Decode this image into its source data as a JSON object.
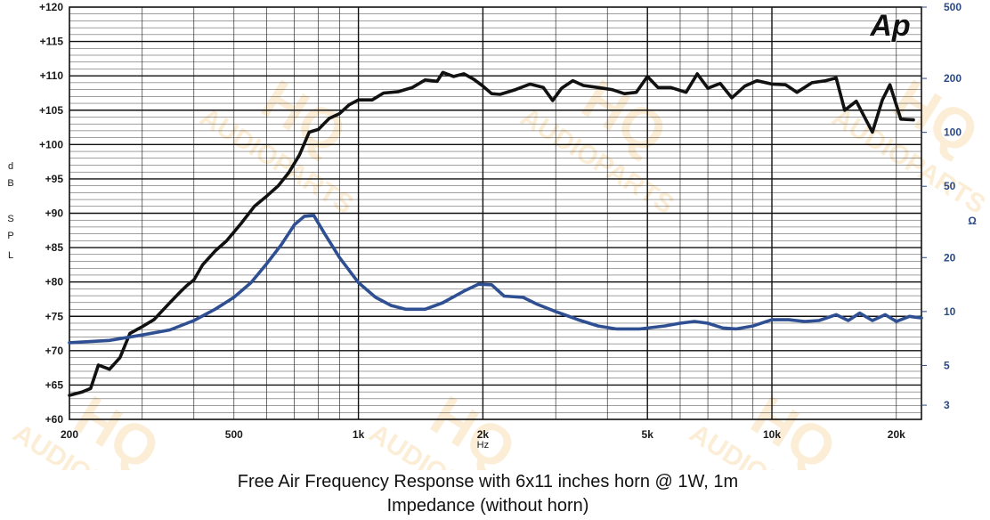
{
  "chart_data": {
    "type": "line",
    "title": "Free Air Frequency Response with 6x11 inches horn @ 1W, 1m",
    "subtitle": "Impedance (without horn)",
    "logo": "Ap",
    "watermark": "HQ AUDIOPARTS",
    "xlabel": "Hz",
    "ylabel_left_letters": [
      "d",
      "B",
      "S",
      "P",
      "L"
    ],
    "ylabel_right": "Ω",
    "xscale": "log",
    "xlim": [
      200,
      23000
    ],
    "ylim_left": [
      60,
      120
    ],
    "ylim_right": [
      2.5,
      500
    ],
    "yscale_right": "log",
    "grid": true,
    "x_ticks": [
      {
        "value": 200,
        "label": "200"
      },
      {
        "value": 500,
        "label": "500"
      },
      {
        "value": 1000,
        "label": "1k"
      },
      {
        "value": 2000,
        "label": "2k"
      },
      {
        "value": 5000,
        "label": "5k"
      },
      {
        "value": 10000,
        "label": "10k"
      },
      {
        "value": 20000,
        "label": "20k"
      }
    ],
    "y_ticks_left": [
      {
        "value": 120,
        "label": "+120"
      },
      {
        "value": 115,
        "label": "+115"
      },
      {
        "value": 110,
        "label": "+110"
      },
      {
        "value": 105,
        "label": "+105"
      },
      {
        "value": 100,
        "label": "+100"
      },
      {
        "value": 95,
        "label": "+95"
      },
      {
        "value": 90,
        "label": "+90"
      },
      {
        "value": 85,
        "label": "+85"
      },
      {
        "value": 80,
        "label": "+80"
      },
      {
        "value": 75,
        "label": "+75"
      },
      {
        "value": 70,
        "label": "+70"
      },
      {
        "value": 65,
        "label": "+65"
      },
      {
        "value": 60,
        "label": "+60"
      }
    ],
    "y_ticks_right": [
      {
        "value": 500,
        "label": "500"
      },
      {
        "value": 200,
        "label": "200"
      },
      {
        "value": 100,
        "label": "100"
      },
      {
        "value": 50,
        "label": "50"
      },
      {
        "value": 20,
        "label": "20"
      },
      {
        "value": 10,
        "label": "10"
      },
      {
        "value": 5,
        "label": "5"
      },
      {
        "value": 3,
        "label": "3"
      }
    ],
    "series": [
      {
        "color": "#111111",
        "axis": "left",
        "points": [
          [
            200,
            63.5
          ],
          [
            215,
            64.0
          ],
          [
            225,
            64.5
          ],
          [
            235,
            67.9
          ],
          [
            250,
            67.3
          ],
          [
            265,
            69.0
          ],
          [
            280,
            72.5
          ],
          [
            300,
            73.5
          ],
          [
            320,
            74.5
          ],
          [
            350,
            77.0
          ],
          [
            370,
            78.5
          ],
          [
            385,
            79.5
          ],
          [
            400,
            80.3
          ],
          [
            420,
            82.5
          ],
          [
            450,
            84.5
          ],
          [
            480,
            86.0
          ],
          [
            520,
            88.5
          ],
          [
            560,
            91.0
          ],
          [
            600,
            92.5
          ],
          [
            640,
            94.0
          ],
          [
            680,
            96.0
          ],
          [
            720,
            98.5
          ],
          [
            760,
            101.8
          ],
          [
            800,
            102.2
          ],
          [
            850,
            103.8
          ],
          [
            900,
            104.5
          ],
          [
            950,
            105.8
          ],
          [
            1000,
            106.5
          ],
          [
            1080,
            106.5
          ],
          [
            1150,
            107.5
          ],
          [
            1250,
            107.7
          ],
          [
            1350,
            108.3
          ],
          [
            1450,
            109.4
          ],
          [
            1550,
            109.2
          ],
          [
            1600,
            110.5
          ],
          [
            1700,
            109.9
          ],
          [
            1800,
            110.3
          ],
          [
            1900,
            109.5
          ],
          [
            2000,
            108.5
          ],
          [
            2100,
            107.4
          ],
          [
            2200,
            107.3
          ],
          [
            2400,
            108.0
          ],
          [
            2600,
            108.8
          ],
          [
            2800,
            108.3
          ],
          [
            2950,
            106.4
          ],
          [
            3100,
            108.2
          ],
          [
            3300,
            109.3
          ],
          [
            3500,
            108.6
          ],
          [
            3800,
            108.3
          ],
          [
            4100,
            108.0
          ],
          [
            4400,
            107.4
          ],
          [
            4700,
            107.6
          ],
          [
            5000,
            109.9
          ],
          [
            5300,
            108.3
          ],
          [
            5700,
            108.3
          ],
          [
            6200,
            107.6
          ],
          [
            6600,
            110.3
          ],
          [
            7000,
            108.2
          ],
          [
            7500,
            108.9
          ],
          [
            8000,
            106.8
          ],
          [
            8600,
            108.5
          ],
          [
            9200,
            109.3
          ],
          [
            10000,
            108.8
          ],
          [
            10800,
            108.7
          ],
          [
            11500,
            107.6
          ],
          [
            12500,
            109.0
          ],
          [
            13500,
            109.3
          ],
          [
            14300,
            109.7
          ],
          [
            15000,
            105.0
          ],
          [
            16000,
            106.3
          ],
          [
            17500,
            101.8
          ],
          [
            18500,
            106.5
          ],
          [
            19300,
            108.7
          ],
          [
            20500,
            103.7
          ],
          [
            22000,
            103.6
          ]
        ]
      },
      {
        "color": "#2f4f93",
        "axis": "right",
        "points": [
          [
            200,
            6.7
          ],
          [
            250,
            6.9
          ],
          [
            300,
            7.4
          ],
          [
            350,
            7.9
          ],
          [
            400,
            8.9
          ],
          [
            450,
            10.3
          ],
          [
            500,
            12.0
          ],
          [
            550,
            14.5
          ],
          [
            600,
            18.5
          ],
          [
            650,
            23.5
          ],
          [
            700,
            30.5
          ],
          [
            740,
            34.0
          ],
          [
            780,
            34.3
          ],
          [
            830,
            27.0
          ],
          [
            900,
            20.0
          ],
          [
            1000,
            14.5
          ],
          [
            1100,
            12.0
          ],
          [
            1200,
            10.8
          ],
          [
            1300,
            10.3
          ],
          [
            1450,
            10.3
          ],
          [
            1600,
            11.2
          ],
          [
            1800,
            13.0
          ],
          [
            1950,
            14.2
          ],
          [
            2100,
            14.1
          ],
          [
            2250,
            12.2
          ],
          [
            2500,
            12.0
          ],
          [
            2700,
            11.0
          ],
          [
            3000,
            10.0
          ],
          [
            3400,
            9.0
          ],
          [
            3800,
            8.3
          ],
          [
            4200,
            8.0
          ],
          [
            4800,
            8.0
          ],
          [
            5500,
            8.3
          ],
          [
            6000,
            8.6
          ],
          [
            6500,
            8.8
          ],
          [
            7000,
            8.6
          ],
          [
            7600,
            8.1
          ],
          [
            8200,
            8.0
          ],
          [
            9000,
            8.3
          ],
          [
            10000,
            9.0
          ],
          [
            11000,
            9.0
          ],
          [
            12000,
            8.8
          ],
          [
            13000,
            8.9
          ],
          [
            14300,
            9.6
          ],
          [
            15300,
            8.9
          ],
          [
            16300,
            9.8
          ],
          [
            17500,
            8.9
          ],
          [
            18800,
            9.6
          ],
          [
            20000,
            8.8
          ],
          [
            21500,
            9.4
          ],
          [
            23000,
            9.2
          ]
        ]
      }
    ]
  }
}
